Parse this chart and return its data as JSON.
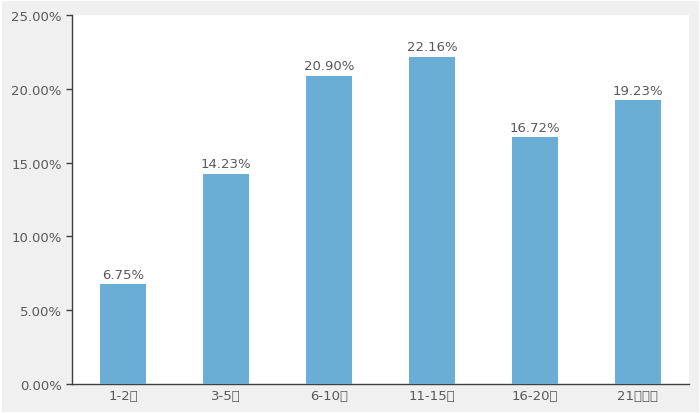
{
  "categories": [
    "1-2年",
    "3-5年",
    "6-10年",
    "11-15年",
    "16-20年",
    "21年以上"
  ],
  "values": [
    6.75,
    14.23,
    20.9,
    22.16,
    16.72,
    19.23
  ],
  "labels": [
    "6.75%",
    "14.23%",
    "20.90%",
    "22.16%",
    "16.72%",
    "19.23%"
  ],
  "bar_color": "#6aaed6",
  "background_color": "#FFFFFF",
  "outer_background": "#F0F0F0",
  "ylim": [
    0,
    25
  ],
  "yticks": [
    0,
    5,
    10,
    15,
    20,
    25
  ],
  "ytick_labels": [
    "0.00%",
    "5.00%",
    "10.00%",
    "15.00%",
    "20.00%",
    "25.00%"
  ],
  "label_fontsize": 9.5,
  "tick_fontsize": 9.5,
  "label_color": "#595959",
  "spine_color": "#404040",
  "bar_width": 0.45
}
